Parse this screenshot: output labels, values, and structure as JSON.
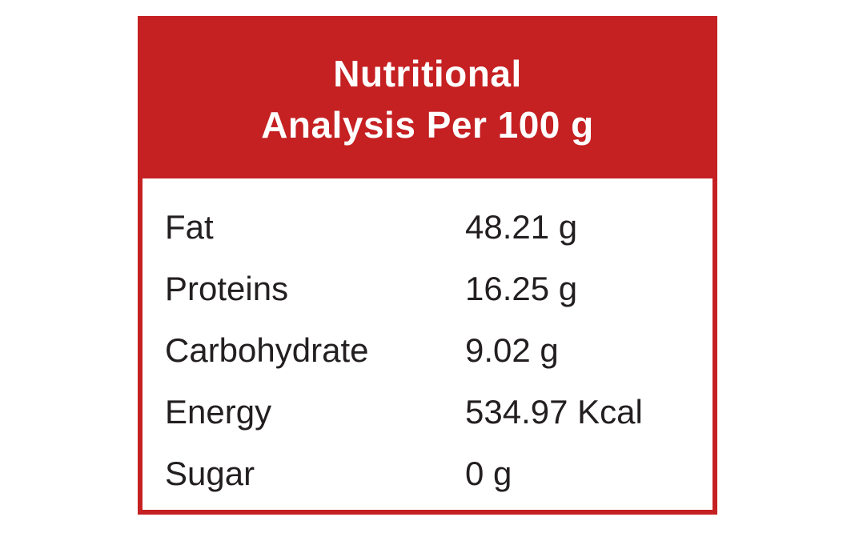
{
  "card": {
    "header": {
      "line1": "Nutritional",
      "line2": "Analysis Per 100 g"
    },
    "rows": [
      {
        "label": "Fat",
        "value": "48.21 g"
      },
      {
        "label": "Proteins",
        "value": "16.25 g"
      },
      {
        "label": "Carbohydrate",
        "value": "9.02 g"
      },
      {
        "label": "Energy",
        "value": "534.97 Kcal"
      },
      {
        "label": "Sugar",
        "value": "0 g"
      }
    ],
    "colors": {
      "accent_red": "#c52022",
      "header_text": "#ffffff",
      "body_text": "#231f20",
      "background": "#ffffff"
    }
  }
}
